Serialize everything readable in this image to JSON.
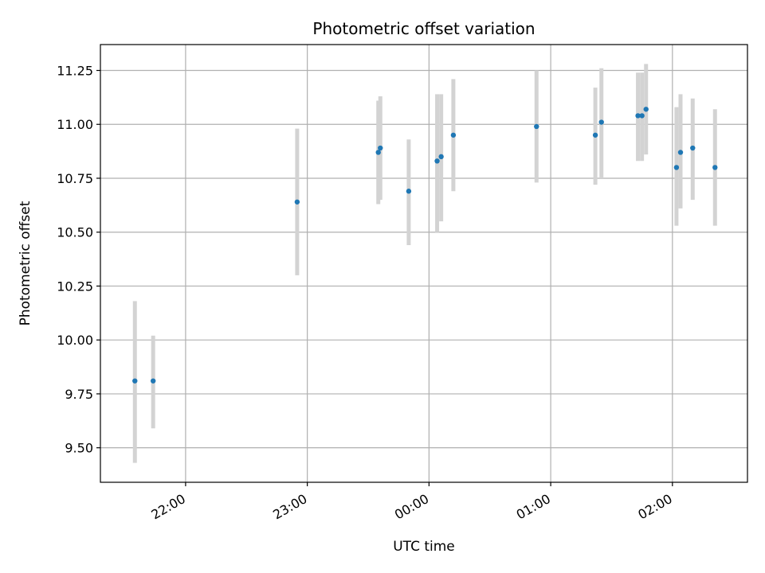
{
  "chart_data": {
    "type": "scatter",
    "title": "Photometric offset variation",
    "xlabel": "UTC time",
    "ylabel": "Photometric offset",
    "x_tick_labels": [
      "22:00",
      "23:00",
      "00:00",
      "01:00",
      "02:00"
    ],
    "x_tick_hours": [
      22,
      23,
      24,
      25,
      26
    ],
    "y_ticks": [
      9.5,
      9.75,
      10.0,
      10.25,
      10.5,
      10.75,
      11.0,
      11.25
    ],
    "y_tick_labels": [
      "9.50",
      "9.75",
      "10.00",
      "10.25",
      "10.50",
      "10.75",
      "11.00",
      "11.25"
    ],
    "xlim": [
      "21:18",
      "02:37"
    ],
    "ylim": [
      9.34,
      11.37
    ],
    "grid": true,
    "colors": {
      "point": "#1f77b4",
      "errorbar": "#d3d3d3",
      "grid": "#b0b0b0"
    },
    "points": [
      {
        "time": "21:35",
        "y": 9.81,
        "err_low": 9.43,
        "err_high": 10.18
      },
      {
        "time": "21:44",
        "y": 9.81,
        "err_low": 9.59,
        "err_high": 10.02
      },
      {
        "time": "22:55",
        "y": 10.64,
        "err_low": 10.3,
        "err_high": 10.98
      },
      {
        "time": "23:35",
        "y": 10.87,
        "err_low": 10.63,
        "err_high": 11.11
      },
      {
        "time": "23:36",
        "y": 10.89,
        "err_low": 10.65,
        "err_high": 11.13
      },
      {
        "time": "23:50",
        "y": 10.69,
        "err_low": 10.44,
        "err_high": 10.93
      },
      {
        "time": "00:04",
        "y": 10.83,
        "err_low": 10.5,
        "err_high": 11.14
      },
      {
        "time": "00:06",
        "y": 10.85,
        "err_low": 10.55,
        "err_high": 11.14
      },
      {
        "time": "00:12",
        "y": 10.95,
        "err_low": 10.69,
        "err_high": 11.21
      },
      {
        "time": "00:53",
        "y": 10.99,
        "err_low": 10.73,
        "err_high": 11.25
      },
      {
        "time": "01:22",
        "y": 10.95,
        "err_low": 10.72,
        "err_high": 11.17
      },
      {
        "time": "01:25",
        "y": 11.01,
        "err_low": 10.75,
        "err_high": 11.26
      },
      {
        "time": "01:43",
        "y": 11.04,
        "err_low": 10.83,
        "err_high": 11.24
      },
      {
        "time": "01:45",
        "y": 11.04,
        "err_low": 10.83,
        "err_high": 11.24
      },
      {
        "time": "01:47",
        "y": 11.07,
        "err_low": 10.86,
        "err_high": 11.28
      },
      {
        "time": "02:02",
        "y": 10.8,
        "err_low": 10.53,
        "err_high": 11.08
      },
      {
        "time": "02:04",
        "y": 10.87,
        "err_low": 10.61,
        "err_high": 11.14
      },
      {
        "time": "02:10",
        "y": 10.89,
        "err_low": 10.65,
        "err_high": 11.12
      },
      {
        "time": "02:21",
        "y": 10.8,
        "err_low": 10.53,
        "err_high": 11.07
      }
    ]
  }
}
